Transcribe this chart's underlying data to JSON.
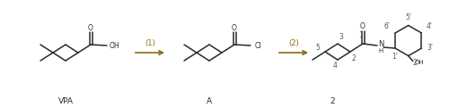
{
  "fig_width": 5.0,
  "fig_height": 1.21,
  "dpi": 100,
  "bg_color": "#ffffff",
  "line_color": "#2a2a2a",
  "arrow_color": "#8B6914",
  "text_color": "#2a2a2a",
  "num_color": "#555577",
  "lw": 1.1,
  "font_size": 6.5,
  "small_font": 5.5,
  "vpa_label": "VPA",
  "A_label": "A",
  "compound2_label": "2",
  "reagent1": "(1)",
  "reagent2": "(2)"
}
